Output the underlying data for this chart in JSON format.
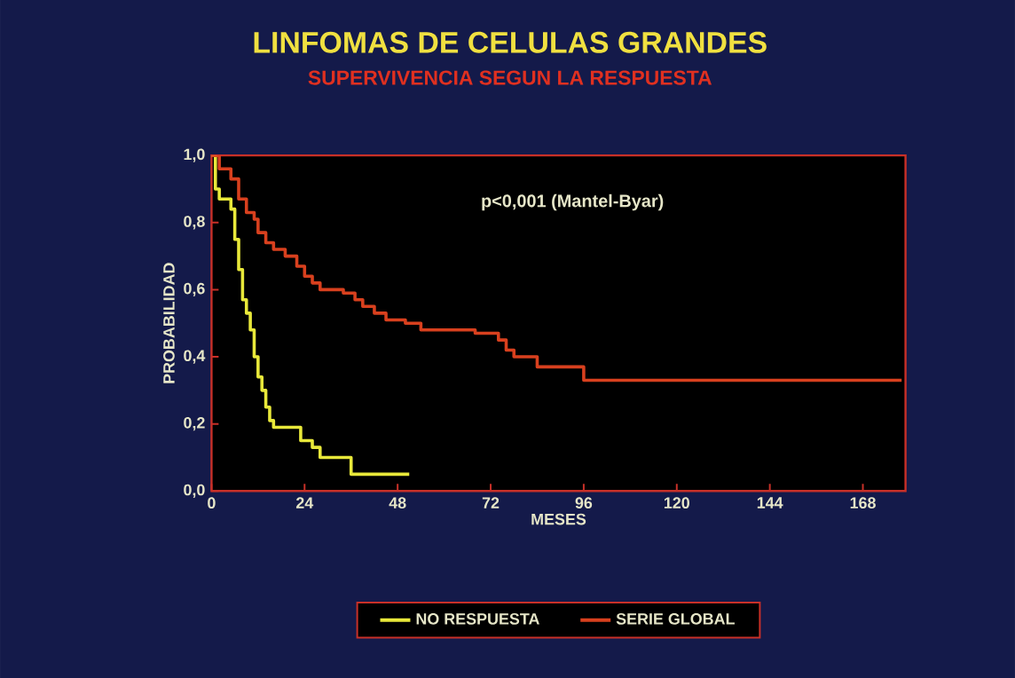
{
  "chart_data": {
    "type": "step",
    "title": "LINFOMAS DE CELULAS GRANDES",
    "subtitle": "SUPERVIVENCIA SEGUN LA RESPUESTA",
    "xlabel": "MESES",
    "ylabel": "PROBABILIDAD",
    "annotations": [
      "p<0,001 (Mantel-Byar)"
    ],
    "xlim": [
      0,
      179
    ],
    "ylim": [
      0,
      1
    ],
    "xticks": [
      0,
      24,
      48,
      72,
      96,
      120,
      144,
      168
    ],
    "yticks": [
      {
        "value": 0,
        "label": "0,0"
      },
      {
        "value": 0.2,
        "label": "0,2"
      },
      {
        "value": 0.4,
        "label": "0,4"
      },
      {
        "value": 0.6,
        "label": "0,6"
      },
      {
        "value": 0.8,
        "label": "0,8"
      },
      {
        "value": 1,
        "label": "1,0"
      }
    ],
    "legend": "bottom",
    "series": [
      {
        "name": "NO RESPUESTA",
        "color": "#e8e83a",
        "x": [
          0,
          1,
          2,
          5,
          6,
          7,
          8,
          9,
          10,
          11,
          12,
          13,
          14,
          15,
          16,
          23,
          26,
          28,
          36,
          51
        ],
        "values": [
          1.0,
          0.9,
          0.87,
          0.84,
          0.75,
          0.66,
          0.57,
          0.53,
          0.48,
          0.4,
          0.34,
          0.3,
          0.25,
          0.21,
          0.19,
          0.15,
          0.13,
          0.1,
          0.05,
          0.05
        ]
      },
      {
        "name": "SERIE GLOBAL",
        "color": "#d8401e",
        "x": [
          0,
          2,
          5,
          7,
          9,
          11,
          12,
          14,
          16,
          19,
          22,
          24,
          26,
          28,
          34,
          37,
          39,
          42,
          45,
          50,
          54,
          68,
          74,
          76,
          78,
          84,
          96,
          178
        ],
        "values": [
          1.0,
          0.96,
          0.93,
          0.87,
          0.83,
          0.81,
          0.77,
          0.74,
          0.72,
          0.7,
          0.67,
          0.64,
          0.62,
          0.6,
          0.59,
          0.57,
          0.55,
          0.53,
          0.51,
          0.5,
          0.48,
          0.47,
          0.45,
          0.42,
          0.4,
          0.37,
          0.33,
          0.33
        ]
      }
    ]
  }
}
